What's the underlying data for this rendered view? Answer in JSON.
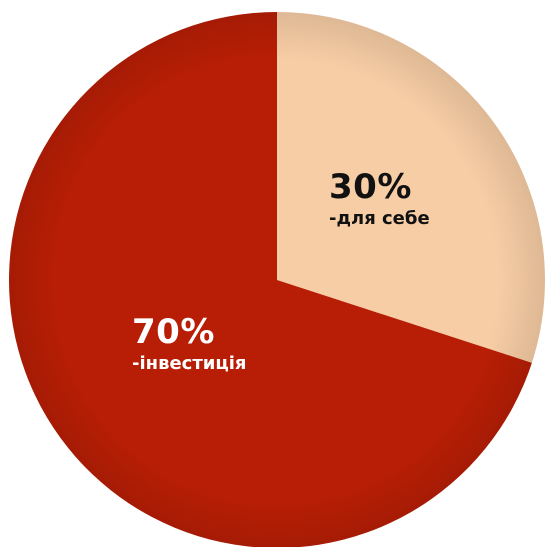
{
  "chart_data": {
    "type": "pie",
    "slices": [
      {
        "value": 30,
        "label": "30%",
        "description": "-для себе",
        "color": "#F7CDA5"
      },
      {
        "value": 70,
        "label": "70%",
        "description": "-інвестиція",
        "color": "#B81E05"
      }
    ],
    "start_angle_deg": 0,
    "direction": "clockwise"
  }
}
